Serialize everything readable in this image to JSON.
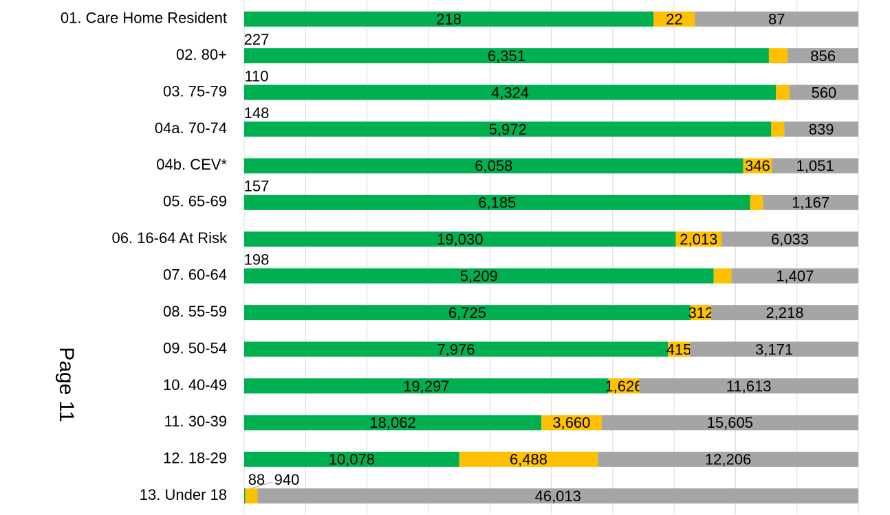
{
  "chart_data": {
    "type": "bar_stacked_percent",
    "orientation": "horizontal",
    "annotation": "Page 11",
    "categories": [
      "01. Care Home Resident",
      "02. 80+",
      "03. 75-79",
      "04a. 70-74",
      "04b. CEV*",
      "05. 65-69",
      "06. 16-64 At Risk",
      "07. 60-64",
      "08. 55-59",
      "09. 50-54",
      "10. 40-49",
      "11. 30-39",
      "12. 18-29",
      "13. Under 18"
    ],
    "series": [
      {
        "color": "#00b050",
        "values": [
          218,
          6351,
          4324,
          5972,
          6058,
          6185,
          19030,
          5209,
          6725,
          7976,
          19297,
          18062,
          10078,
          88
        ],
        "value_labels": [
          "218",
          "6,351",
          "4,324",
          "5,972",
          "6,058",
          "6,185",
          "19,030",
          "5,209",
          "6,725",
          "7,976",
          "19,297",
          "18,062",
          "10,078",
          "88"
        ]
      },
      {
        "color": "#ffc000",
        "values": [
          22,
          227,
          110,
          148,
          346,
          157,
          2013,
          198,
          312,
          415,
          1626,
          3660,
          6488,
          940
        ],
        "value_labels": [
          "22",
          "227",
          "110",
          "148",
          "346",
          "157",
          "2,013",
          "198",
          "312",
          "415",
          "1,626",
          "3,660",
          "6,488",
          "940"
        ]
      },
      {
        "color": "#a5a5a5",
        "values": [
          87,
          856,
          560,
          839,
          1051,
          1167,
          6033,
          1407,
          2218,
          3171,
          11613,
          15605,
          12206,
          46013
        ],
        "value_labels": [
          "87",
          "856",
          "560",
          "839",
          "1,051",
          "1,167",
          "6,033",
          "1,407",
          "2,218",
          "3,171",
          "11,613",
          "15,605",
          "12,206",
          "46,013"
        ]
      }
    ],
    "xlim": [
      0,
      100
    ],
    "xticks": [
      0,
      10,
      20,
      30,
      40,
      50,
      60,
      70,
      80,
      90,
      100
    ],
    "tick_labels": false,
    "grid": true
  }
}
